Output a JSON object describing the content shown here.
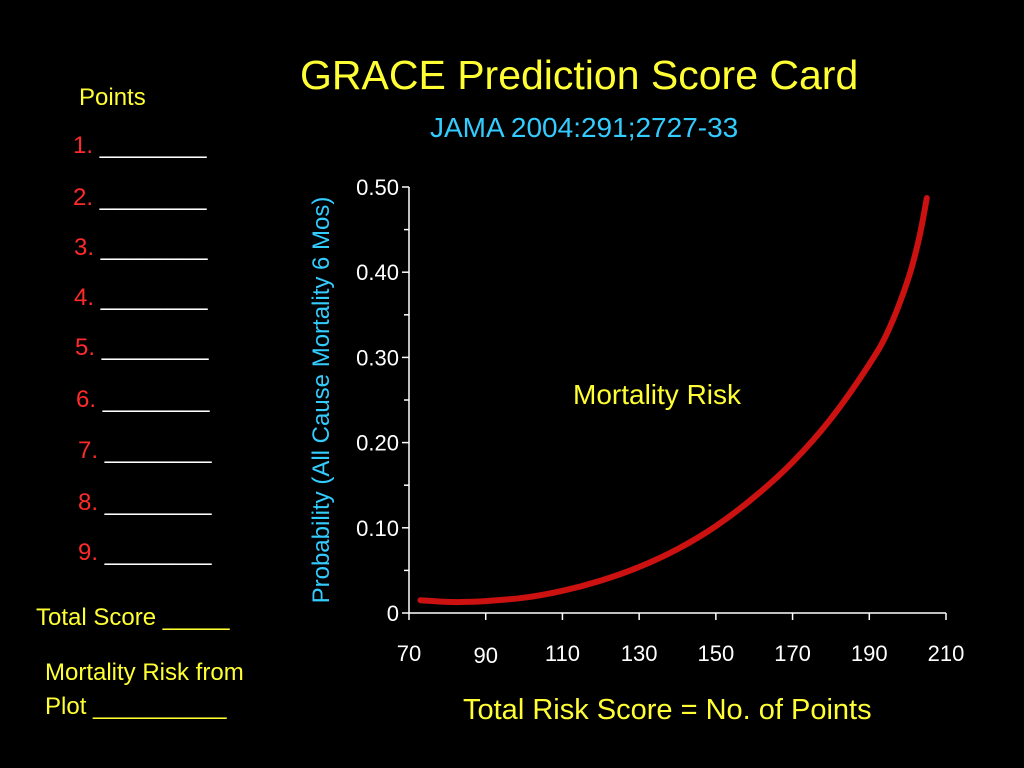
{
  "title": "GRACE Prediction Score Card",
  "subtitle": "JAMA 2004:291;2727-33",
  "points_panel": {
    "heading": "Points",
    "rows": [
      {
        "num": "1.",
        "blank": "________"
      },
      {
        "num": "2.",
        "blank": "________"
      },
      {
        "num": "3.",
        "blank": "________"
      },
      {
        "num": "4.",
        "blank": "________"
      },
      {
        "num": "5.",
        "blank": "________"
      },
      {
        "num": "6.",
        "blank": "________"
      },
      {
        "num": "7.",
        "blank": "________"
      },
      {
        "num": "8.",
        "blank": "________"
      },
      {
        "num": "9.",
        "blank": "________"
      }
    ],
    "total_score": "Total Score _____",
    "mortality_risk_line1": "Mortality Risk from",
    "mortality_risk_line2": "Plot __________"
  },
  "colors": {
    "background": "#000000",
    "title": "#ffff33",
    "subtitle": "#33ccff",
    "curve": "#cc1111",
    "axis": "#ffffff",
    "point_numbers": "#ff2a2a"
  },
  "chart_data": {
    "type": "line",
    "xlabel": "Total Risk Score = No. of Points",
    "ylabel": "Probability (All Cause Mortality 6 Mos)",
    "xlim": [
      70,
      210
    ],
    "ylim": [
      0,
      0.5
    ],
    "xticks": [
      70,
      90,
      110,
      130,
      150,
      170,
      190,
      210
    ],
    "xtick_labels": [
      "70",
      "90",
      "110",
      "130",
      "150",
      "170",
      "190",
      "210"
    ],
    "yticks": [
      0,
      0.1,
      0.2,
      0.3,
      0.4,
      0.5
    ],
    "ytick_labels": [
      "0",
      "0.10",
      "0.20",
      "0.30",
      "0.40",
      "0.50"
    ],
    "yminor": [
      0.05,
      0.15,
      0.25,
      0.35,
      0.45
    ],
    "grid": false,
    "annotation": "Mortality Risk",
    "series": [
      {
        "x": [
          73,
          80,
          85,
          90,
          100,
          110,
          120,
          130,
          140,
          150,
          160,
          170,
          180,
          190,
          195,
          200,
          203,
          205
        ],
        "y": [
          0.015,
          0.013,
          0.013,
          0.014,
          0.018,
          0.026,
          0.038,
          0.054,
          0.075,
          0.102,
          0.136,
          0.177,
          0.228,
          0.292,
          0.332,
          0.39,
          0.44,
          0.487
        ]
      }
    ]
  }
}
